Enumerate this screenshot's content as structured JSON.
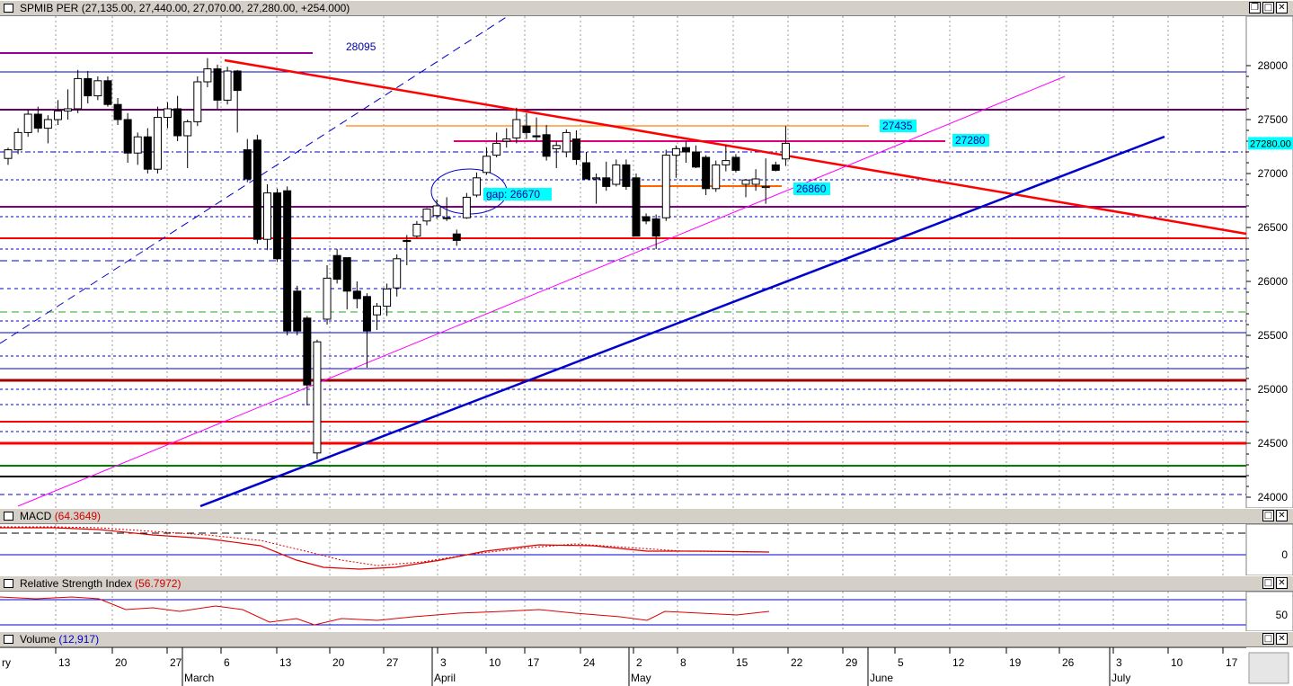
{
  "header": {
    "symbol": "SPMIB PER",
    "ohlc": "(27,135.00, 27,440.00, 27,070.00, 27,280.00, +254.000)"
  },
  "panels": {
    "macd": {
      "name": "MACD",
      "value": "(64.3649)"
    },
    "rsi": {
      "name": "Relative Strength Index",
      "value": "(56.7972)"
    },
    "volume": {
      "name": "Volume",
      "value": "(12,917)"
    }
  },
  "window_buttons": {
    "restore": "❐",
    "maximize": "□",
    "close": "✕"
  },
  "colors": {
    "up_candle": "#ffffff",
    "down_candle": "#000000",
    "resistance_line": "#ff0000",
    "support_trend": "#0000cc",
    "channel_line": "#ff00ff",
    "horizontal_blue": "#0000cc",
    "label_bg": "#00ffff",
    "last_price_bg": "#00ffff"
  },
  "chart_data": {
    "type": "candlestick",
    "y_ticks": [
      24000,
      24500,
      25000,
      25500,
      26000,
      26500,
      27000,
      27500,
      28000
    ],
    "ylim": [
      23950,
      28470
    ],
    "last_price_label": "27280.00",
    "x_ticks": [
      "13",
      "20",
      "27",
      "6",
      "13",
      "20",
      "27",
      "3",
      "10",
      "17",
      "24",
      "2",
      "8",
      "15",
      "22",
      "29",
      "5",
      "12",
      "19",
      "26",
      "3",
      "10",
      "17"
    ],
    "month_labels": [
      "March",
      "April",
      "May",
      "June",
      "July"
    ],
    "left_edge_labels": [
      "ry"
    ],
    "annotations": [
      "28095",
      "27435",
      "27280",
      "26860",
      "gap: 26670"
    ],
    "candles": [
      {
        "o": 27140,
        "h": 27240,
        "l": 27080,
        "c": 27220
      },
      {
        "o": 27220,
        "h": 27420,
        "l": 27180,
        "c": 27380
      },
      {
        "o": 27380,
        "h": 27590,
        "l": 27340,
        "c": 27550
      },
      {
        "o": 27550,
        "h": 27620,
        "l": 27380,
        "c": 27420
      },
      {
        "o": 27420,
        "h": 27540,
        "l": 27280,
        "c": 27500
      },
      {
        "o": 27500,
        "h": 27680,
        "l": 27450,
        "c": 27580
      },
      {
        "o": 27580,
        "h": 27780,
        "l": 27500,
        "c": 27600
      },
      {
        "o": 27600,
        "h": 27960,
        "l": 27560,
        "c": 27880
      },
      {
        "o": 27880,
        "h": 27950,
        "l": 27650,
        "c": 27720
      },
      {
        "o": 27720,
        "h": 27900,
        "l": 27680,
        "c": 27860
      },
      {
        "o": 27860,
        "h": 27900,
        "l": 27620,
        "c": 27640
      },
      {
        "o": 27640,
        "h": 27700,
        "l": 27450,
        "c": 27500
      },
      {
        "o": 27500,
        "h": 27560,
        "l": 27100,
        "c": 27190
      },
      {
        "o": 27190,
        "h": 27380,
        "l": 27080,
        "c": 27340
      },
      {
        "o": 27340,
        "h": 27420,
        "l": 27000,
        "c": 27040
      },
      {
        "o": 27040,
        "h": 27620,
        "l": 27000,
        "c": 27520
      },
      {
        "o": 27520,
        "h": 27660,
        "l": 27420,
        "c": 27600
      },
      {
        "o": 27600,
        "h": 27720,
        "l": 27300,
        "c": 27350
      },
      {
        "o": 27350,
        "h": 27500,
        "l": 27050,
        "c": 27480
      },
      {
        "o": 27480,
        "h": 27900,
        "l": 27440,
        "c": 27850
      },
      {
        "o": 27850,
        "h": 28070,
        "l": 27800,
        "c": 27970
      },
      {
        "o": 27970,
        "h": 28010,
        "l": 27600,
        "c": 27680
      },
      {
        "o": 27680,
        "h": 27990,
        "l": 27640,
        "c": 27950
      },
      {
        "o": 27950,
        "h": 27960,
        "l": 27380,
        "c": 27770
      },
      {
        "o": 27220,
        "h": 27320,
        "l": 26920,
        "c": 26950
      },
      {
        "o": 27310,
        "h": 27360,
        "l": 26350,
        "c": 26390
      },
      {
        "o": 26390,
        "h": 26900,
        "l": 26290,
        "c": 26820
      },
      {
        "o": 26820,
        "h": 26860,
        "l": 26180,
        "c": 26210
      },
      {
        "o": 26840,
        "h": 26880,
        "l": 25500,
        "c": 25540
      },
      {
        "o": 25910,
        "h": 25960,
        "l": 25500,
        "c": 25540
      },
      {
        "o": 25660,
        "h": 25680,
        "l": 24850,
        "c": 25040
      },
      {
        "o": 24410,
        "h": 25460,
        "l": 24350,
        "c": 25440
      },
      {
        "o": 25650,
        "h": 26150,
        "l": 25600,
        "c": 26030
      },
      {
        "o": 26240,
        "h": 26300,
        "l": 25980,
        "c": 26020
      },
      {
        "o": 26220,
        "h": 26220,
        "l": 25740,
        "c": 25910
      },
      {
        "o": 25910,
        "h": 26000,
        "l": 25750,
        "c": 25840
      },
      {
        "o": 25860,
        "h": 25890,
        "l": 25200,
        "c": 25540
      },
      {
        "o": 25690,
        "h": 25800,
        "l": 25550,
        "c": 25770
      },
      {
        "o": 25770,
        "h": 25980,
        "l": 25680,
        "c": 25930
      },
      {
        "o": 25940,
        "h": 26250,
        "l": 25860,
        "c": 26210
      },
      {
        "o": 26380,
        "h": 26430,
        "l": 26150,
        "c": 26370
      },
      {
        "o": 26420,
        "h": 26560,
        "l": 26400,
        "c": 26530
      },
      {
        "o": 26560,
        "h": 26680,
        "l": 26520,
        "c": 26670
      },
      {
        "o": 26610,
        "h": 26760,
        "l": 26580,
        "c": 26700
      },
      {
        "o": 26590,
        "h": 26780,
        "l": 26560,
        "c": 26590
      },
      {
        "o": 26440,
        "h": 26480,
        "l": 26330,
        "c": 26380
      },
      {
        "o": 26590,
        "h": 26820,
        "l": 26580,
        "c": 26780
      },
      {
        "o": 26800,
        "h": 27010,
        "l": 26780,
        "c": 26960
      },
      {
        "o": 27010,
        "h": 27240,
        "l": 26990,
        "c": 27160
      },
      {
        "o": 27170,
        "h": 27380,
        "l": 27150,
        "c": 27280
      },
      {
        "o": 27300,
        "h": 27420,
        "l": 27240,
        "c": 27320
      },
      {
        "o": 27330,
        "h": 27610,
        "l": 27280,
        "c": 27500
      },
      {
        "o": 27440,
        "h": 27560,
        "l": 27320,
        "c": 27380
      },
      {
        "o": 27350,
        "h": 27520,
        "l": 27300,
        "c": 27340
      },
      {
        "o": 27360,
        "h": 27450,
        "l": 27120,
        "c": 27160
      },
      {
        "o": 27230,
        "h": 27300,
        "l": 27050,
        "c": 27260
      },
      {
        "o": 27200,
        "h": 27410,
        "l": 27150,
        "c": 27380
      },
      {
        "o": 27320,
        "h": 27400,
        "l": 27080,
        "c": 27130
      },
      {
        "o": 27100,
        "h": 27200,
        "l": 26950,
        "c": 26950
      },
      {
        "o": 26950,
        "h": 27000,
        "l": 26720,
        "c": 26960
      },
      {
        "o": 26960,
        "h": 27110,
        "l": 26840,
        "c": 26880
      },
      {
        "o": 26900,
        "h": 27130,
        "l": 26880,
        "c": 27080
      },
      {
        "o": 27080,
        "h": 27130,
        "l": 26850,
        "c": 26880
      },
      {
        "o": 26960,
        "h": 27000,
        "l": 26420,
        "c": 26420
      },
      {
        "o": 26600,
        "h": 26630,
        "l": 26530,
        "c": 26560
      },
      {
        "o": 26580,
        "h": 26620,
        "l": 26300,
        "c": 26420
      },
      {
        "o": 26590,
        "h": 27220,
        "l": 26560,
        "c": 27170
      },
      {
        "o": 27170,
        "h": 27260,
        "l": 26960,
        "c": 27230
      },
      {
        "o": 27240,
        "h": 27300,
        "l": 27100,
        "c": 27200
      },
      {
        "o": 27200,
        "h": 27260,
        "l": 27050,
        "c": 27060
      },
      {
        "o": 27150,
        "h": 27170,
        "l": 26800,
        "c": 26860
      },
      {
        "o": 26860,
        "h": 27120,
        "l": 26830,
        "c": 27080
      },
      {
        "o": 27080,
        "h": 27260,
        "l": 27020,
        "c": 27120
      },
      {
        "o": 27150,
        "h": 27180,
        "l": 27010,
        "c": 27030
      },
      {
        "o": 26900,
        "h": 26950,
        "l": 26780,
        "c": 26940
      },
      {
        "o": 26900,
        "h": 27040,
        "l": 26840,
        "c": 26950
      },
      {
        "o": 26870,
        "h": 27140,
        "l": 26720,
        "c": 26880
      },
      {
        "o": 27080,
        "h": 27110,
        "l": 27020,
        "c": 27030
      },
      {
        "o": 27135,
        "h": 27440,
        "l": 27070,
        "c": 27280
      }
    ]
  }
}
